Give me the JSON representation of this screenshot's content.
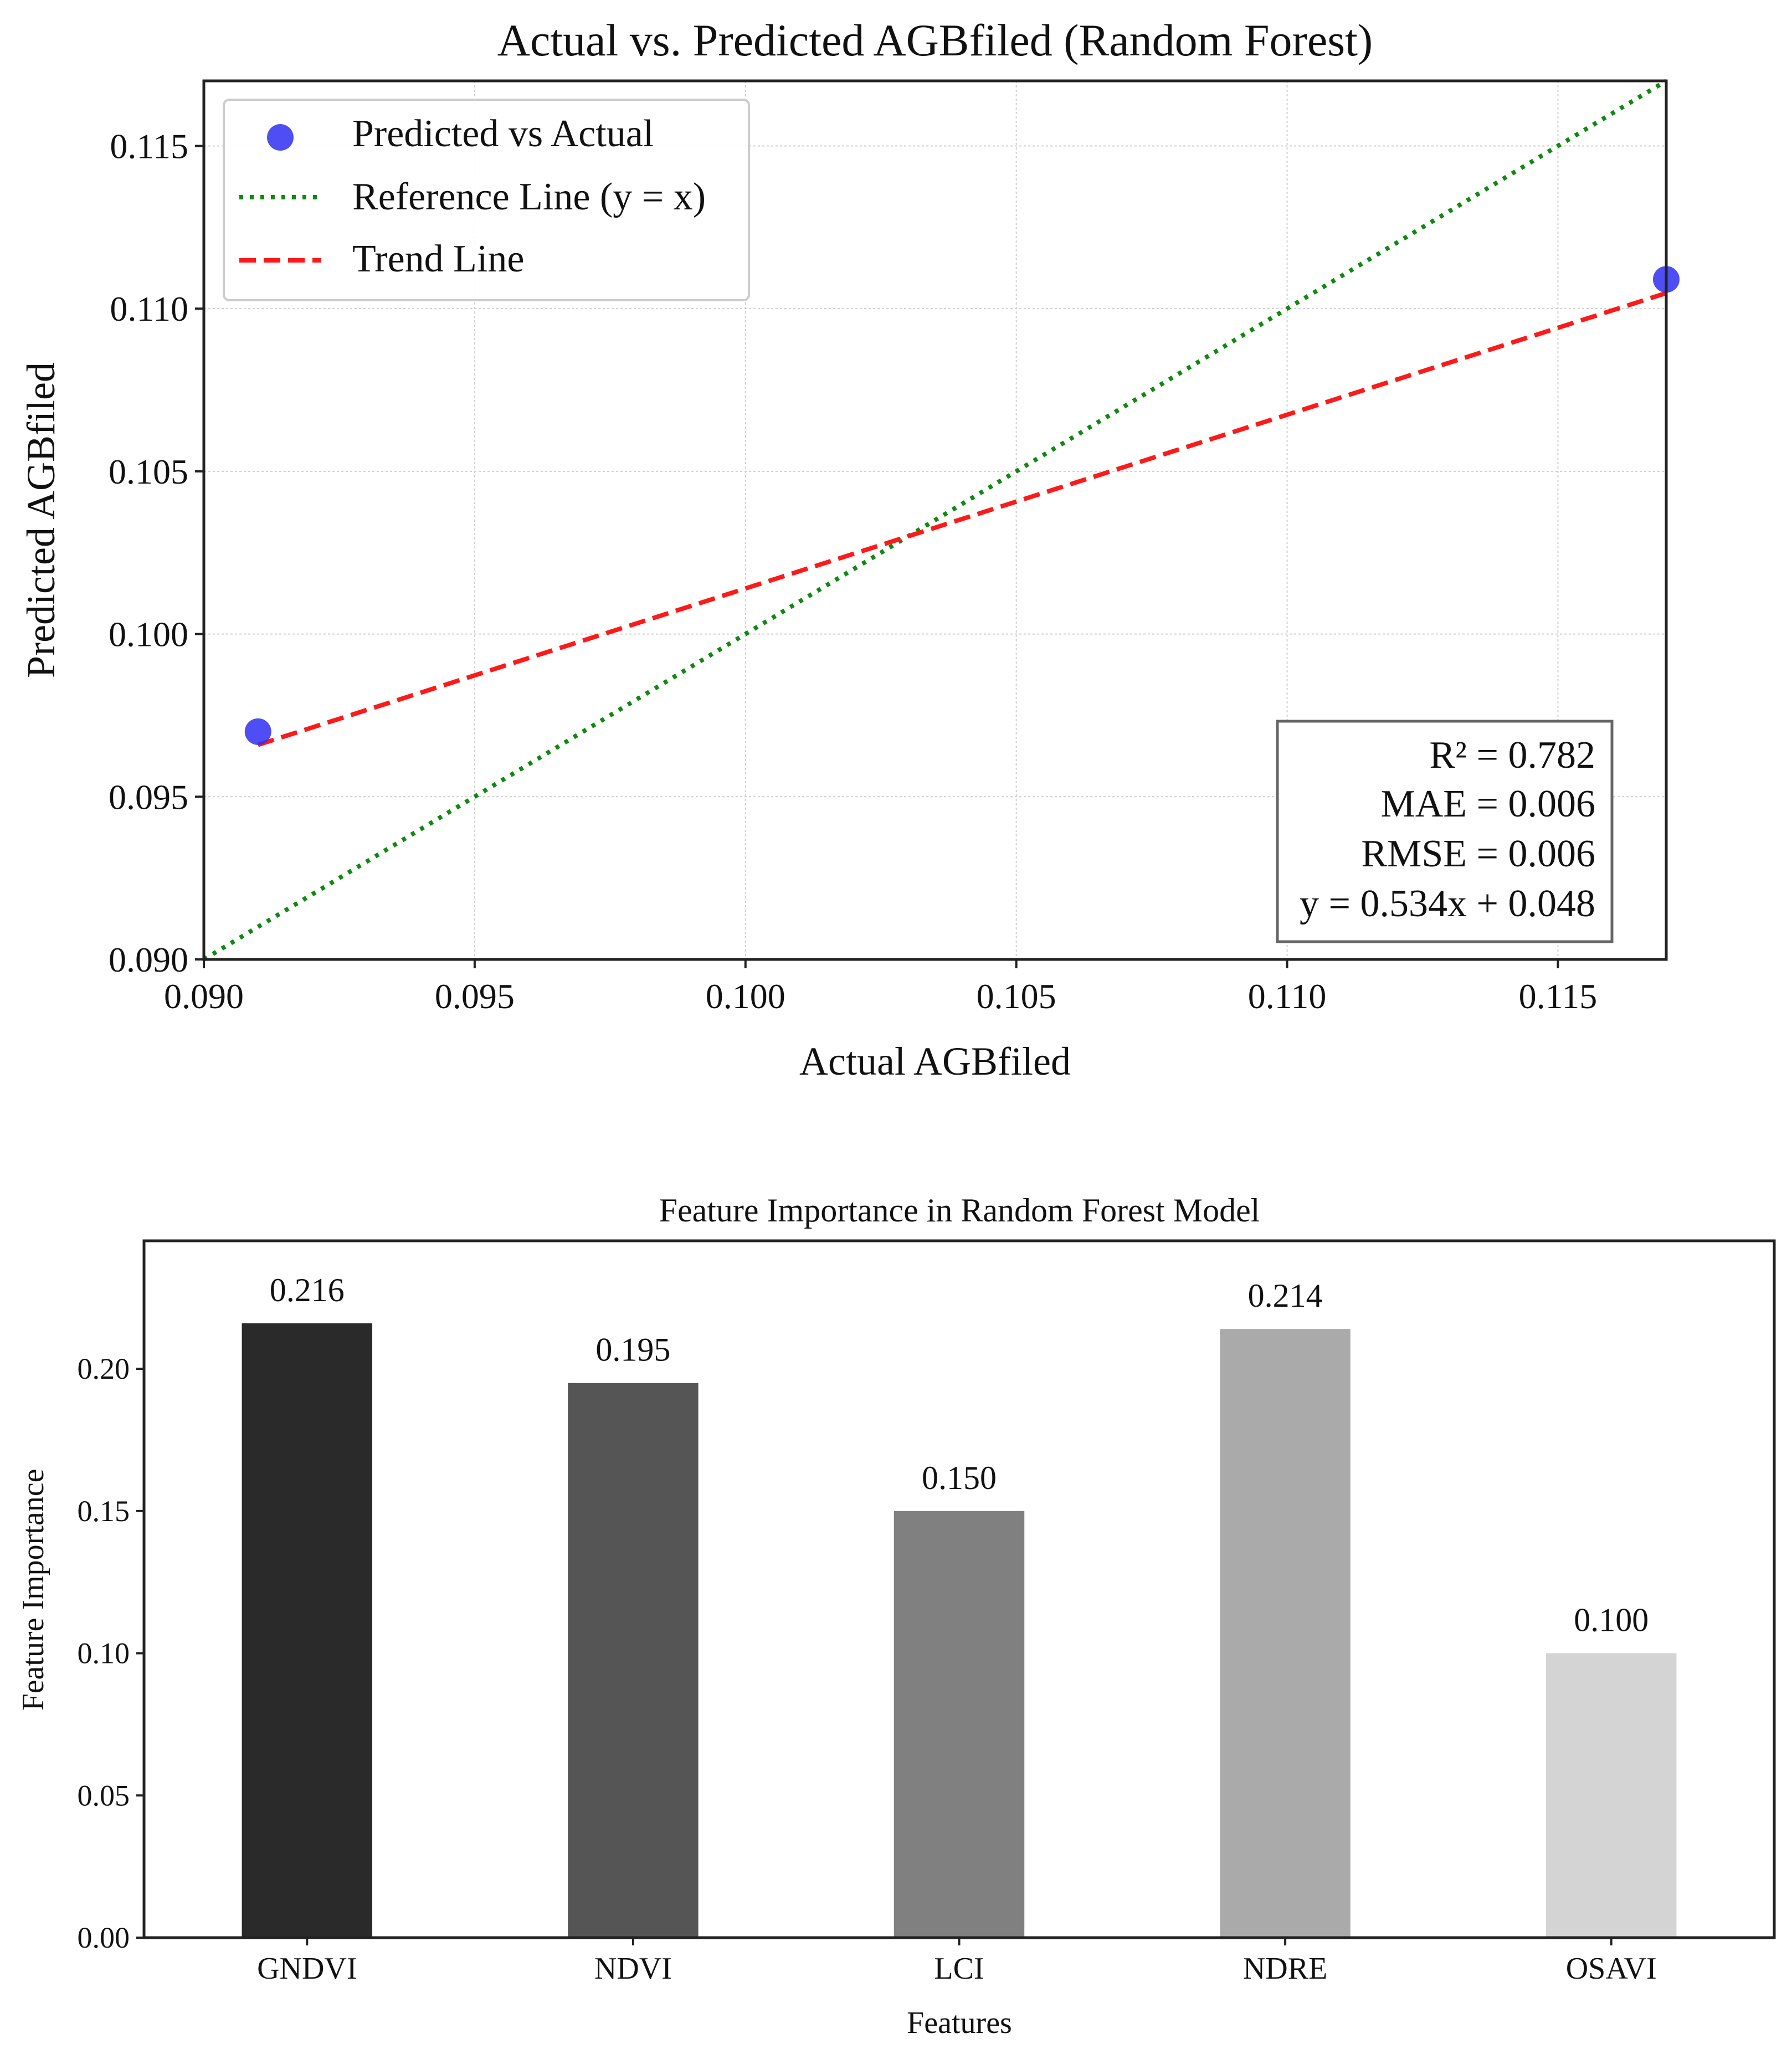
{
  "chart_data": [
    {
      "type": "scatter",
      "title": "Actual vs. Predicted AGBfiled (Random Forest)",
      "xlabel": "Actual AGBfiled",
      "ylabel": "Predicted AGBfiled",
      "xlim": [
        0.09,
        0.117
      ],
      "ylim": [
        0.09,
        0.117
      ],
      "xticks": [
        "0.090",
        "0.095",
        "0.100",
        "0.105",
        "0.110",
        "0.115"
      ],
      "xtick_values": [
        0.09,
        0.095,
        0.1,
        0.105,
        0.11,
        0.115
      ],
      "yticks": [
        "0.090",
        "0.095",
        "0.100",
        "0.105",
        "0.110",
        "0.115"
      ],
      "ytick_values": [
        0.09,
        0.095,
        0.1,
        0.105,
        0.11,
        0.115
      ],
      "grid": true,
      "points": [
        {
          "x": 0.091,
          "y": 0.097
        },
        {
          "x": 0.117,
          "y": 0.1109
        }
      ],
      "reference_line": {
        "x": [
          0.09,
          0.117
        ],
        "y": [
          0.09,
          0.117
        ]
      },
      "trend_line": {
        "slope": 0.534,
        "intercept": 0.048,
        "x": [
          0.091,
          0.117
        ]
      },
      "legend": {
        "placement": "top-left",
        "entries": [
          "Predicted vs Actual",
          "Reference Line (y = x)",
          "Trend Line"
        ]
      },
      "stats": [
        "R² = 0.782",
        "MAE = 0.006",
        "RMSE = 0.006",
        "y = 0.534x + 0.048"
      ],
      "colors": {
        "points": "#2f2ff2",
        "reference": "#118811",
        "trend": "#ff1a1a"
      }
    },
    {
      "type": "bar",
      "title": "Feature Importance in Random Forest Model",
      "xlabel": "Features",
      "ylabel": "Feature Importance",
      "categories": [
        "GNDVI",
        "NDVI",
        "LCI",
        "NDRE",
        "OSAVI"
      ],
      "values": [
        0.216,
        0.195,
        0.15,
        0.214,
        0.1
      ],
      "labels": [
        "0.216",
        "0.195",
        "0.150",
        "0.214",
        "0.100"
      ],
      "ylim": [
        0,
        0.245
      ],
      "yticks": [
        "0.00",
        "0.05",
        "0.10",
        "0.15",
        "0.20"
      ],
      "ytick_values": [
        0,
        0.05,
        0.1,
        0.15,
        0.2
      ],
      "grid": false,
      "colors": [
        "#2a2a2a",
        "#555555",
        "#808080",
        "#aaaaaa",
        "#d4d4d4"
      ]
    }
  ]
}
